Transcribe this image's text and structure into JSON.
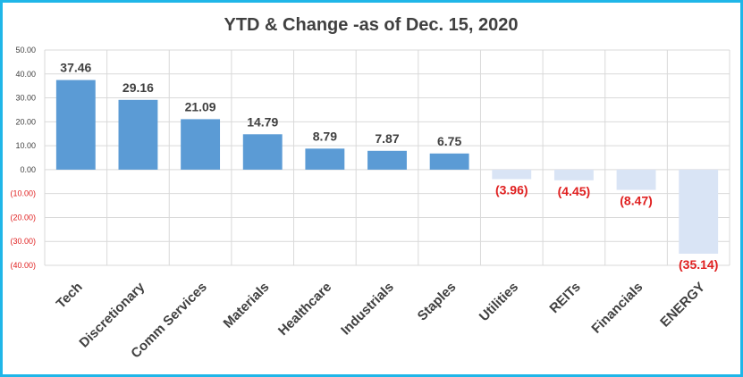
{
  "chart_data": {
    "type": "bar",
    "title": "YTD & Change -as of Dec. 15, 2020",
    "xlabel": "",
    "ylabel": "",
    "categories": [
      "Tech",
      "Discretionary",
      "Comm Services",
      "Materials",
      "Healthcare",
      "Industrials",
      "Staples",
      "Utilities",
      "REITs",
      "Financials",
      "ENERGY"
    ],
    "values": [
      37.46,
      29.16,
      21.09,
      14.79,
      8.79,
      7.87,
      6.75,
      -3.96,
      -4.45,
      -8.47,
      -35.14
    ],
    "data_labels": [
      "37.46",
      "29.16",
      "21.09",
      "14.79",
      "8.79",
      "7.87",
      "6.75",
      "(3.96)",
      "(4.45)",
      "(8.47)",
      "(35.14)"
    ],
    "ylim": [
      -40,
      50
    ],
    "yticks": [
      50,
      40,
      30,
      20,
      10,
      0,
      -10,
      -20,
      -30,
      -40
    ],
    "ytick_labels": [
      "50.00",
      "40.00",
      "30.00",
      "20.00",
      "10.00",
      "0.00",
      "(10.00)",
      "(20.00)",
      "(30.00)",
      "(40.00)"
    ],
    "grid": true,
    "legend": "none",
    "colors": {
      "positive_bar": "#5b9bd5",
      "negative_bar": "#d9e4f5",
      "positive_label": "#404040",
      "negative_label": "#e02020",
      "frame": "#1fb6e8",
      "grid": "#d9d9d9"
    }
  }
}
